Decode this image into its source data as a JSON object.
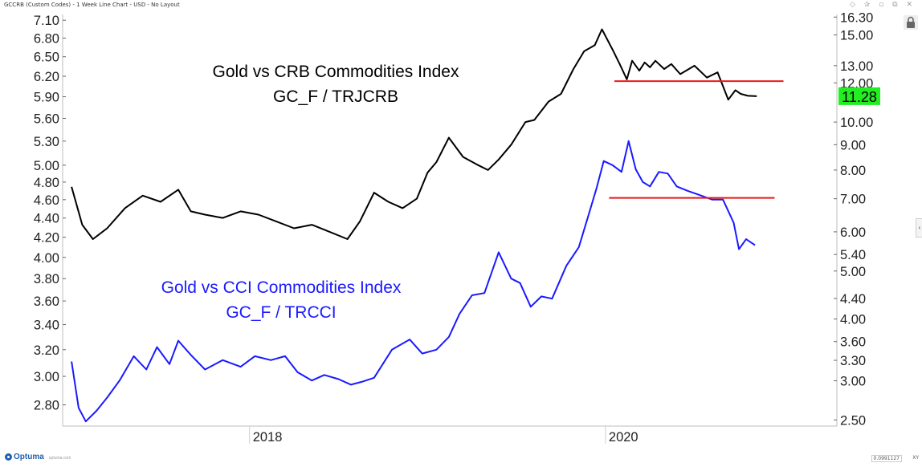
{
  "header": {
    "title": "GCCRB (Custom Codes) - 1 Week Line Chart - USD - No Layout",
    "controls": "◇ ✰ ▫ ⧉ ✕"
  },
  "footer": {
    "logo": "Optuma",
    "logo_url": "optuma.com",
    "scale_readout": "0.0991127",
    "scale_mode": "XY",
    "logo_icon": "optuma-logo-icon"
  },
  "icons": {
    "lock": "lock-icon",
    "collapse": "chevron-left-icon"
  },
  "colors": {
    "crb_line": "#000000",
    "cci_line": "#1a1aff",
    "resistance": "#e8191c",
    "price_tag_bg": "#22ee22"
  },
  "chart_data": {
    "type": "line",
    "x_axis": {
      "ticks": [
        "2018",
        "2020"
      ],
      "range": [
        2016.95,
        2021.3
      ]
    },
    "left_axis": {
      "scale": "log",
      "range": [
        2.66,
        7.2
      ],
      "ticks": [
        "7.10",
        "6.80",
        "6.50",
        "6.20",
        "5.90",
        "5.60",
        "5.30",
        "5.00",
        "4.80",
        "4.60",
        "4.40",
        "4.20",
        "4.00",
        "3.80",
        "3.60",
        "3.40",
        "3.20",
        "3.00",
        "2.80"
      ]
    },
    "right_axis": {
      "scale": "log",
      "range": [
        2.43,
        16.5
      ],
      "ticks": [
        "16.30",
        "15.00",
        "13.00",
        "12.00",
        "10.00",
        "9.00",
        "8.00",
        "7.00",
        "6.00",
        "5.40",
        "5.00",
        "4.40",
        "4.00",
        "3.60",
        "3.30",
        "3.00",
        "2.50"
      ]
    },
    "last_value_tag": "11.28",
    "annotations": [
      {
        "series": "crb",
        "lines": [
          "Gold vs CRB Commodities Index",
          "GC_F / TRJCRB"
        ]
      },
      {
        "series": "cci",
        "lines": [
          "Gold vs CCI Commodities Index",
          "GC_F / TRCCI"
        ]
      }
    ],
    "series": [
      {
        "id": "crb",
        "axis": "right",
        "color": "#000000",
        "x": [
          2017.0,
          2017.06,
          2017.12,
          2017.2,
          2017.3,
          2017.4,
          2017.5,
          2017.6,
          2017.67,
          2017.75,
          2017.85,
          2017.95,
          2018.05,
          2018.15,
          2018.25,
          2018.35,
          2018.45,
          2018.55,
          2018.62,
          2018.7,
          2018.78,
          2018.86,
          2018.94,
          2019.0,
          2019.05,
          2019.12,
          2019.2,
          2019.28,
          2019.34,
          2019.4,
          2019.47,
          2019.55,
          2019.6,
          2019.68,
          2019.75,
          2019.82,
          2019.88,
          2019.94,
          2019.98,
          2020.04,
          2020.08,
          2020.12,
          2020.15,
          2020.19,
          2020.22,
          2020.25,
          2020.28,
          2020.33,
          2020.37,
          2020.42,
          2020.5,
          2020.57,
          2020.63,
          2020.69,
          2020.73,
          2020.76,
          2020.8,
          2020.85
        ],
        "values": [
          7.4,
          6.2,
          5.8,
          6.1,
          6.7,
          7.1,
          6.9,
          7.3,
          6.6,
          6.5,
          6.4,
          6.6,
          6.5,
          6.3,
          6.1,
          6.2,
          6.0,
          5.8,
          6.3,
          7.2,
          6.9,
          6.7,
          7.0,
          7.9,
          8.3,
          9.3,
          8.5,
          8.2,
          8.0,
          8.4,
          9.0,
          10.0,
          10.1,
          11.0,
          11.4,
          12.8,
          13.9,
          14.3,
          15.4,
          14.0,
          13.1,
          12.2,
          13.3,
          12.7,
          13.2,
          12.9,
          13.3,
          12.8,
          13.1,
          12.5,
          13.0,
          12.3,
          12.6,
          11.1,
          11.6,
          11.4,
          11.3,
          11.28
        ]
      },
      {
        "id": "cci",
        "axis": "left",
        "color": "#1a1aff",
        "x": [
          2017.0,
          2017.04,
          2017.08,
          2017.14,
          2017.2,
          2017.27,
          2017.35,
          2017.42,
          2017.48,
          2017.55,
          2017.6,
          2017.67,
          2017.75,
          2017.85,
          2017.95,
          2018.03,
          2018.12,
          2018.2,
          2018.27,
          2018.35,
          2018.42,
          2018.5,
          2018.57,
          2018.63,
          2018.7,
          2018.8,
          2018.9,
          2018.97,
          2019.05,
          2019.12,
          2019.18,
          2019.25,
          2019.32,
          2019.4,
          2019.47,
          2019.52,
          2019.58,
          2019.64,
          2019.7,
          2019.78,
          2019.85,
          2019.9,
          2019.95,
          2019.99,
          2020.04,
          2020.09,
          2020.13,
          2020.17,
          2020.21,
          2020.25,
          2020.3,
          2020.35,
          2020.4,
          2020.46,
          2020.53,
          2020.6,
          2020.66,
          2020.72,
          2020.75,
          2020.79,
          2020.84
        ],
        "values": [
          3.11,
          2.78,
          2.69,
          2.76,
          2.85,
          2.97,
          3.15,
          3.05,
          3.22,
          3.09,
          3.27,
          3.16,
          3.05,
          3.12,
          3.07,
          3.15,
          3.12,
          3.15,
          3.03,
          2.97,
          3.01,
          2.98,
          2.94,
          2.96,
          2.99,
          3.2,
          3.28,
          3.17,
          3.2,
          3.3,
          3.49,
          3.65,
          3.67,
          4.05,
          3.8,
          3.76,
          3.55,
          3.64,
          3.62,
          3.92,
          4.1,
          4.4,
          4.73,
          5.05,
          5.0,
          4.92,
          5.3,
          4.95,
          4.8,
          4.75,
          4.92,
          4.9,
          4.75,
          4.7,
          4.65,
          4.6,
          4.6,
          4.35,
          4.08,
          4.18,
          4.12
        ]
      }
    ],
    "resistance_lines": [
      {
        "series": "crb",
        "axis": "right",
        "value": 12.1,
        "x_start": 2020.05,
        "x_end": 2021.0
      },
      {
        "series": "cci",
        "axis": "left",
        "value": 4.62,
        "x_start": 2020.02,
        "x_end": 2020.95
      }
    ]
  }
}
